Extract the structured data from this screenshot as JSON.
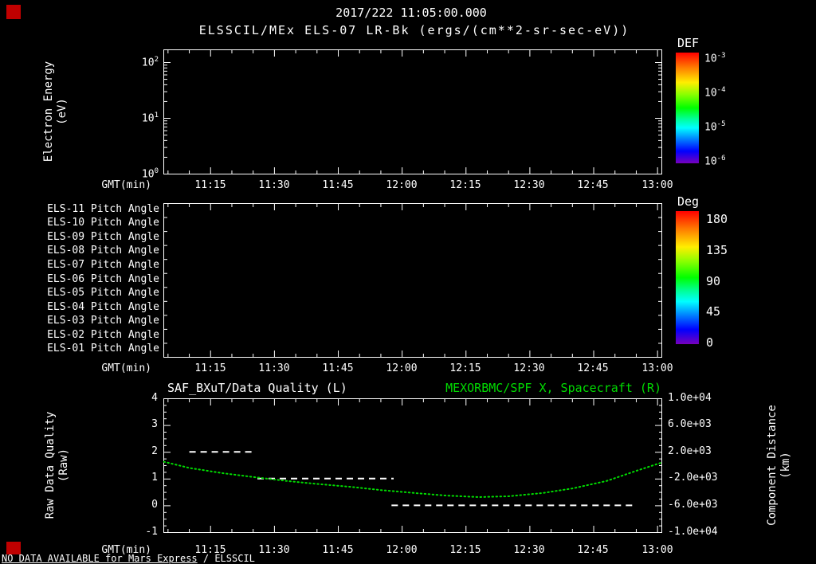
{
  "header": {
    "timestamp": "2017/222 11:05:00.000",
    "subtitle": "ELSSCIL/MEx ELS-07 LR-Bk (ergs/(cm**2-sr-sec-eV))"
  },
  "time_axis": {
    "label": "GMT(min)",
    "ticks": [
      "11:15",
      "11:30",
      "11:45",
      "12:00",
      "12:15",
      "12:30",
      "12:45",
      "13:00"
    ]
  },
  "panel1": {
    "ylabel_line1": "Electron Energy",
    "ylabel_line2": "(eV)",
    "yticks": [
      {
        "base": "10",
        "exp": "2"
      },
      {
        "base": "10",
        "exp": "1"
      },
      {
        "base": "10",
        "exp": "0"
      }
    ],
    "colorbar_title": "DEF",
    "colorbar_ticks": [
      {
        "base": "10",
        "exp": "-3"
      },
      {
        "base": "10",
        "exp": "-4"
      },
      {
        "base": "10",
        "exp": "-5"
      },
      {
        "base": "10",
        "exp": "-6"
      }
    ]
  },
  "panel2": {
    "row_labels": [
      "ELS-11 Pitch Angle",
      "ELS-10 Pitch Angle",
      "ELS-09 Pitch Angle",
      "ELS-08 Pitch Angle",
      "ELS-07 Pitch Angle",
      "ELS-06 Pitch Angle",
      "ELS-05 Pitch Angle",
      "ELS-04 Pitch Angle",
      "ELS-03 Pitch Angle",
      "ELS-02 Pitch Angle",
      "ELS-01 Pitch Angle"
    ],
    "colorbar_title": "Deg",
    "colorbar_ticks": [
      "180",
      "135",
      "90",
      "45",
      "0"
    ]
  },
  "panel3": {
    "title_left": "SAF_BXuT/Data Quality (L)",
    "title_right": "MEXORBMC/SPF X, Spacecraft (R)",
    "ylabel_left_line1": "Raw Data Quality",
    "ylabel_left_line2": "(Raw)",
    "yticks_left": [
      "4",
      "3",
      "2",
      "1",
      "0",
      "-1"
    ],
    "yticks_right": [
      "1.0e+04",
      "6.0e+03",
      "2.0e+03",
      "-2.0e+03",
      "-6.0e+03",
      "-1.0e+04"
    ],
    "ylabel_right_line1": "Component Distance",
    "ylabel_right_line2": "(km)"
  },
  "footer": {
    "no_data_underlined": "NO DATA AVAILABLE for Mars Express",
    "no_data_rest": " / ELSSCIL"
  },
  "colors": {
    "background": "#000000",
    "text": "#ffffff",
    "accent_green": "#00dc00",
    "marker_red": "#c00000"
  },
  "chart_data": [
    {
      "type": "heatmap",
      "title": "ELSSCIL/MEx ELS-07 LR-Bk",
      "units": "ergs/(cm**2-sr-sec-eV)",
      "xlabel": "GMT(min)",
      "x_ticks": [
        "11:15",
        "11:30",
        "11:45",
        "12:00",
        "12:15",
        "12:30",
        "12:45",
        "13:00"
      ],
      "ylabel": "Electron Energy (eV)",
      "y_scale": "log",
      "ylim": [
        1,
        100
      ],
      "colorbar": {
        "label": "DEF",
        "scale": "log",
        "ticks": [
          "1e-3",
          "1e-4",
          "1e-5",
          "1e-6"
        ]
      },
      "values": [],
      "note": "no data plotted - panel empty"
    },
    {
      "type": "heatmap",
      "rows": [
        "ELS-11 Pitch Angle",
        "ELS-10 Pitch Angle",
        "ELS-09 Pitch Angle",
        "ELS-08 Pitch Angle",
        "ELS-07 Pitch Angle",
        "ELS-06 Pitch Angle",
        "ELS-05 Pitch Angle",
        "ELS-04 Pitch Angle",
        "ELS-03 Pitch Angle",
        "ELS-02 Pitch Angle",
        "ELS-01 Pitch Angle"
      ],
      "xlabel": "GMT(min)",
      "x_ticks": [
        "11:15",
        "11:30",
        "11:45",
        "12:00",
        "12:15",
        "12:30",
        "12:45",
        "13:00"
      ],
      "colorbar": {
        "label": "Deg",
        "ticks": [
          180,
          135,
          90,
          45,
          0
        ],
        "range": [
          0,
          180
        ]
      },
      "values": [],
      "note": "no data plotted - panel empty"
    },
    {
      "type": "line",
      "title_left": "SAF_BXuT/Data Quality (L)",
      "title_right": "MEXORBMC/SPF X, Spacecraft (R)",
      "xlabel": "GMT(min)",
      "x_ticks": [
        "11:15",
        "11:30",
        "11:45",
        "12:00",
        "12:15",
        "12:30",
        "12:45",
        "13:00"
      ],
      "x_minutes_range": [
        4,
        121
      ],
      "x_minutes_reference": "minutes after 11:00 GMT",
      "ylabel_left": "Raw Data Quality (Raw)",
      "ylim_left": [
        -1,
        4
      ],
      "yticks_left": [
        4,
        3,
        2,
        1,
        0,
        -1
      ],
      "ylabel_right": "Component Distance (km)",
      "ylim_right": [
        -10000,
        10000
      ],
      "yticks_right": [
        10000,
        6000,
        2000,
        -2000,
        -6000,
        -10000
      ],
      "series": [
        {
          "name": "SAF_BXuT/Data Quality",
          "axis": "left",
          "color": "#ffffff",
          "style": "dashed",
          "segments": [
            {
              "start_min": 10,
              "end_min": 25,
              "start_time": "11:10",
              "end_time": "11:25",
              "value": 2
            },
            {
              "start_min": 26,
              "end_min": 58,
              "start_time": "11:26",
              "end_time": "11:58",
              "value": 1
            },
            {
              "start_min": 57.5,
              "end_min": 115,
              "start_time": "11:57",
              "end_time": "12:55",
              "value": 0
            }
          ]
        },
        {
          "name": "MEXORBMC/SPF X Spacecraft",
          "axis": "right",
          "color": "#00dc00",
          "style": "dotted",
          "minutes": [
            4,
            10,
            18,
            25,
            33,
            40,
            48,
            55,
            63,
            70,
            78,
            85,
            93,
            100,
            108,
            115,
            121
          ],
          "times": [
            "11:04",
            "11:10",
            "11:18",
            "11:25",
            "11:33",
            "11:40",
            "11:48",
            "11:55",
            "12:03",
            "12:10",
            "12:18",
            "12:25",
            "12:33",
            "12:40",
            "12:48",
            "12:55",
            "13:01"
          ],
          "km": [
            520,
            -400,
            -1200,
            -1760,
            -2360,
            -2800,
            -3240,
            -3720,
            -4160,
            -4520,
            -4760,
            -4640,
            -4160,
            -3480,
            -2360,
            -840,
            400
          ]
        }
      ]
    }
  ]
}
